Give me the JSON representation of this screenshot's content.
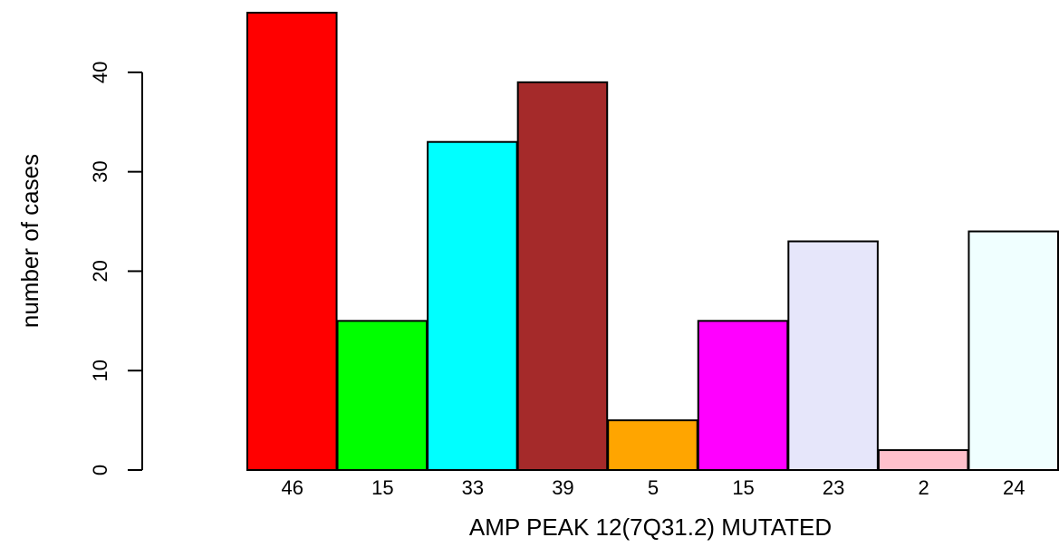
{
  "chart_data": {
    "type": "bar",
    "title": "",
    "xlabel": "AMP PEAK 12(7Q31.2) MUTATED",
    "ylabel": "number of cases",
    "ylim": [
      0,
      46
    ],
    "yticks": [
      0,
      10,
      20,
      30,
      40
    ],
    "ytick_labels": [
      "0",
      "10",
      "20",
      "30",
      "40"
    ],
    "grid": false,
    "legend": "none",
    "categories": [
      "46",
      "15",
      "33",
      "39",
      "5",
      "15",
      "23",
      "2",
      "24"
    ],
    "values": [
      46,
      15,
      33,
      39,
      5,
      15,
      23,
      2,
      24
    ],
    "colors": [
      "#ff0000",
      "#00ff00",
      "#00ffff",
      "#a52a2a",
      "#ffa500",
      "#ff00ff",
      "#e6e6fa",
      "#ffc0cb",
      "#f0ffff"
    ]
  }
}
